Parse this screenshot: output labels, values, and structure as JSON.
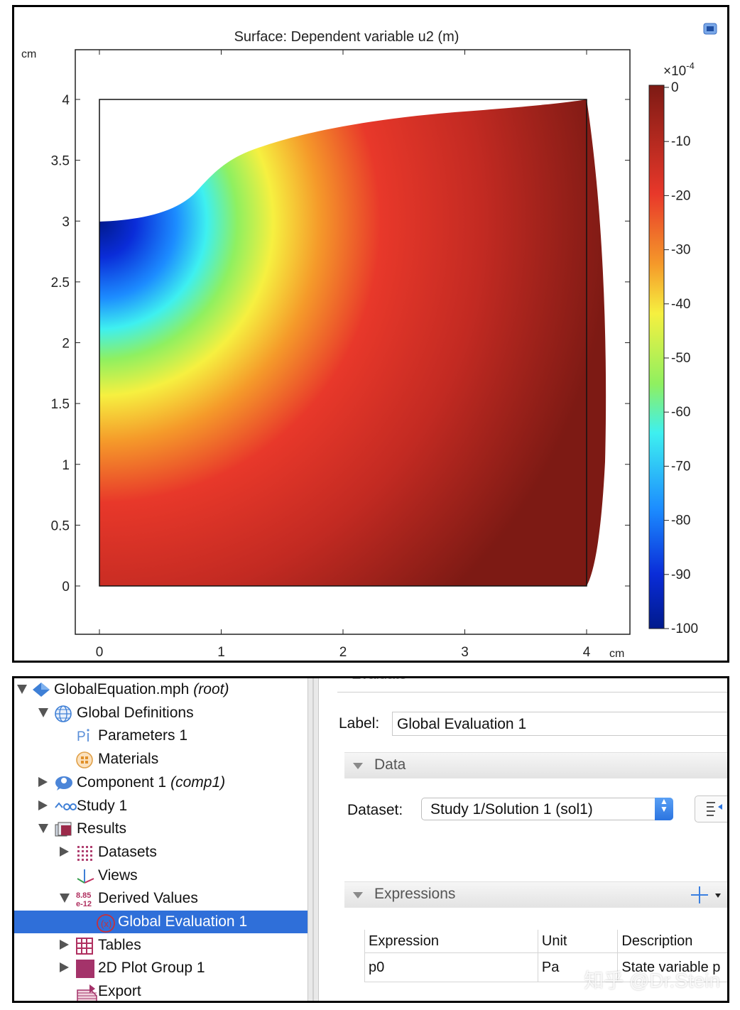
{
  "plot": {
    "title": "Surface: Dependent variable u2 (m)",
    "y_unit": "cm",
    "x_unit": "cm",
    "x_ticks": [
      "0",
      "1",
      "2",
      "3",
      "4"
    ],
    "y_ticks": [
      "0",
      "0.5",
      "1",
      "1.5",
      "2",
      "2.5",
      "3",
      "3.5",
      "4"
    ],
    "colorbar": {
      "multiplier": "×10",
      "exponent": "-4",
      "ticks": [
        "0",
        "-10",
        "-20",
        "-30",
        "-40",
        "-50",
        "-60",
        "-70",
        "-80",
        "-90",
        "-100"
      ]
    }
  },
  "chart_data": {
    "type": "heatmap",
    "title": "Surface: Dependent variable u2 (m)",
    "xlabel": "cm",
    "ylabel": "cm",
    "xlim": [
      -0.2,
      4.35
    ],
    "ylim": [
      -0.4,
      4.4
    ],
    "x_ticks": [
      0,
      1,
      2,
      3,
      4
    ],
    "y_ticks": [
      0,
      0.5,
      1,
      1.5,
      2,
      2.5,
      3,
      3.5,
      4
    ],
    "colorbar": {
      "min": -100,
      "max": 0,
      "scale": "1e-4",
      "colormap": "rainbow"
    },
    "grid": false
  },
  "tree": {
    "items": [
      {
        "label": "GlobalEquation.mph",
        "suffix": "(root)",
        "level": 0,
        "toggle": "down",
        "icon": "model-icon"
      },
      {
        "label": "Global Definitions",
        "suffix": "",
        "level": 1,
        "toggle": "down",
        "icon": "globe-icon"
      },
      {
        "label": "Parameters 1",
        "suffix": "",
        "level": 2,
        "toggle": "",
        "icon": "parameters-icon"
      },
      {
        "label": "Materials",
        "suffix": "",
        "level": 2,
        "toggle": "",
        "icon": "materials-icon"
      },
      {
        "label": "Component 1",
        "suffix": "(comp1)",
        "level": 1,
        "toggle": "right",
        "icon": "component-icon"
      },
      {
        "label": "Study 1",
        "suffix": "",
        "level": 1,
        "toggle": "right",
        "icon": "study-icon"
      },
      {
        "label": "Results",
        "suffix": "",
        "level": 1,
        "toggle": "down",
        "icon": "results-icon"
      },
      {
        "label": "Datasets",
        "suffix": "",
        "level": 2,
        "toggle": "right",
        "icon": "datasets-icon"
      },
      {
        "label": "Views",
        "suffix": "",
        "level": 2,
        "toggle": "",
        "icon": "views-icon"
      },
      {
        "label": "Derived Values",
        "suffix": "",
        "level": 2,
        "toggle": "down",
        "icon": "derived-values-icon"
      },
      {
        "label": "Global Evaluation 1",
        "suffix": "",
        "level": 3,
        "toggle": "",
        "icon": "global-evaluation-icon",
        "selected": true
      },
      {
        "label": "Tables",
        "suffix": "",
        "level": 2,
        "toggle": "right",
        "icon": "tables-icon"
      },
      {
        "label": "2D Plot Group 1",
        "suffix": "",
        "level": 2,
        "toggle": "right",
        "icon": "plot-group-icon"
      },
      {
        "label": "Export",
        "suffix": "",
        "level": 2,
        "toggle": "",
        "icon": "export-icon"
      }
    ]
  },
  "settings": {
    "cut_header": "Evaluate",
    "label_caption": "Label:",
    "label_value": "Global Evaluation 1",
    "data_section": "Data",
    "dataset_caption": "Dataset:",
    "dataset_value": "Study 1/Solution 1 (sol1)",
    "expressions_section": "Expressions",
    "columns": [
      "Expression",
      "Unit",
      "Description"
    ],
    "row": {
      "expression": "p0",
      "unit": "Pa",
      "description": "State variable p"
    },
    "derived_badge": "8.85 e-12"
  },
  "watermark": "知乎 @Dr.Stein",
  "colors": {
    "selection": "#2f6fd9",
    "accent": "#2b74e0"
  }
}
